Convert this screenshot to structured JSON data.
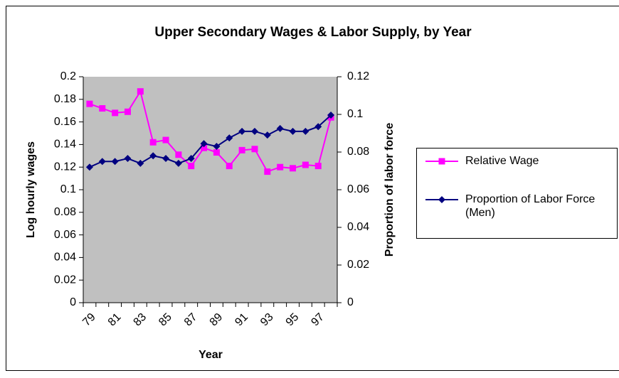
{
  "chart_data": {
    "type": "line",
    "title": "Upper Secondary Wages & Labor Supply, by Year",
    "x_label": "Year",
    "y_label": "Log hourly wages",
    "y2_label": "Proportion of labor force",
    "categories": [
      "79",
      null,
      "81",
      null,
      "83",
      null,
      "85",
      null,
      "87",
      null,
      "89",
      null,
      "91",
      null,
      "93",
      null,
      "95",
      null,
      "97",
      null
    ],
    "series": [
      {
        "name": "Relative Wage",
        "color": "#ff00ff",
        "marker": "square",
        "values": [
          0.176,
          0.172,
          0.168,
          0.169,
          0.187,
          0.142,
          0.144,
          0.131,
          0.121,
          0.137,
          0.133,
          0.121,
          0.135,
          0.136,
          0.116,
          0.12,
          0.119,
          0.122,
          0.121,
          0.164
        ]
      },
      {
        "name": "Proportion of Labor Force (Men)",
        "color": "#000080",
        "marker": "diamond",
        "axis": "y2",
        "values": [
          0.072,
          0.075,
          0.075,
          0.0766,
          0.074,
          0.078,
          0.0766,
          0.074,
          0.0766,
          0.0845,
          0.083,
          0.0875,
          0.091,
          0.091,
          0.089,
          0.0925,
          0.091,
          0.091,
          0.0935,
          0.0996
        ]
      }
    ],
    "ylim": [
      0,
      0.2
    ],
    "yticks": [
      0,
      0.02,
      0.04,
      0.06,
      0.08,
      0.1,
      0.12,
      0.14,
      0.16,
      0.18,
      0.2
    ],
    "y2lim": [
      0,
      0.12
    ],
    "y2ticks": [
      0,
      0.02,
      0.04,
      0.06,
      0.08,
      0.1,
      0.12
    ],
    "plot_background": "#c0c0c0",
    "legend": "right"
  }
}
